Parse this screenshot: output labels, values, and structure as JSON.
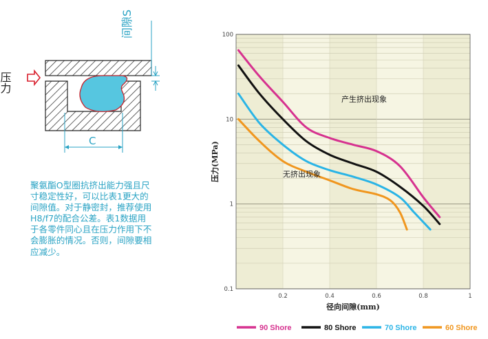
{
  "diagram": {
    "pressure_label": "压力",
    "gap_label": "间隙S",
    "width_label": "C"
  },
  "description": "聚氨酯O型圈抗挤出能力强且尺寸稳定性好，可以比表1更大的间隙值。对于静密封，推荐使用H8/f7的配合公差。表1数据用于各零件同心且在压力作用下不会膨胀的情况。否则，间隙要相应减少。",
  "chart_data": {
    "type": "line",
    "title": "",
    "xlabel": "径向间隙(mm)",
    "ylabel": "压力(MPa)",
    "x_scale": "linear",
    "y_scale": "log",
    "xlim": [
      0,
      1
    ],
    "ylim": [
      0.1,
      100
    ],
    "x_ticks": [
      "0.2",
      "0.4",
      "0.6",
      "0.8",
      "1"
    ],
    "y_ticks": [
      "0.1",
      "1",
      "10",
      "100"
    ],
    "grid": true,
    "legend_position": "bottom",
    "annotations": [
      "产生挤出现象",
      "无挤出现象"
    ],
    "series": [
      {
        "name": "90 Shore",
        "color": "#d6318f",
        "x": [
          0.01,
          0.1,
          0.2,
          0.3,
          0.4,
          0.5,
          0.6,
          0.7,
          0.8,
          0.87
        ],
        "y": [
          65,
          32,
          16,
          8,
          6,
          5,
          4.2,
          2.8,
          1.2,
          0.7
        ]
      },
      {
        "name": "80 Shore",
        "color": "#111111",
        "x": [
          0.01,
          0.1,
          0.2,
          0.3,
          0.4,
          0.5,
          0.6,
          0.7,
          0.8,
          0.87
        ],
        "y": [
          43,
          20,
          10,
          5.5,
          3.8,
          3.0,
          2.4,
          1.6,
          0.95,
          0.58
        ]
      },
      {
        "name": "70 Shore",
        "color": "#2ab4e6",
        "x": [
          0.01,
          0.1,
          0.2,
          0.3,
          0.4,
          0.5,
          0.6,
          0.7,
          0.76,
          0.83
        ],
        "y": [
          20,
          9,
          5,
          3.2,
          2.5,
          2.1,
          1.7,
          1.2,
          0.8,
          0.5
        ]
      },
      {
        "name": "60 Shore",
        "color": "#f0961e",
        "x": [
          0.01,
          0.1,
          0.2,
          0.3,
          0.4,
          0.5,
          0.6,
          0.66,
          0.7,
          0.73
        ],
        "y": [
          10,
          5.5,
          3.2,
          2.4,
          1.9,
          1.5,
          1.3,
          1.1,
          0.8,
          0.5
        ]
      }
    ]
  }
}
